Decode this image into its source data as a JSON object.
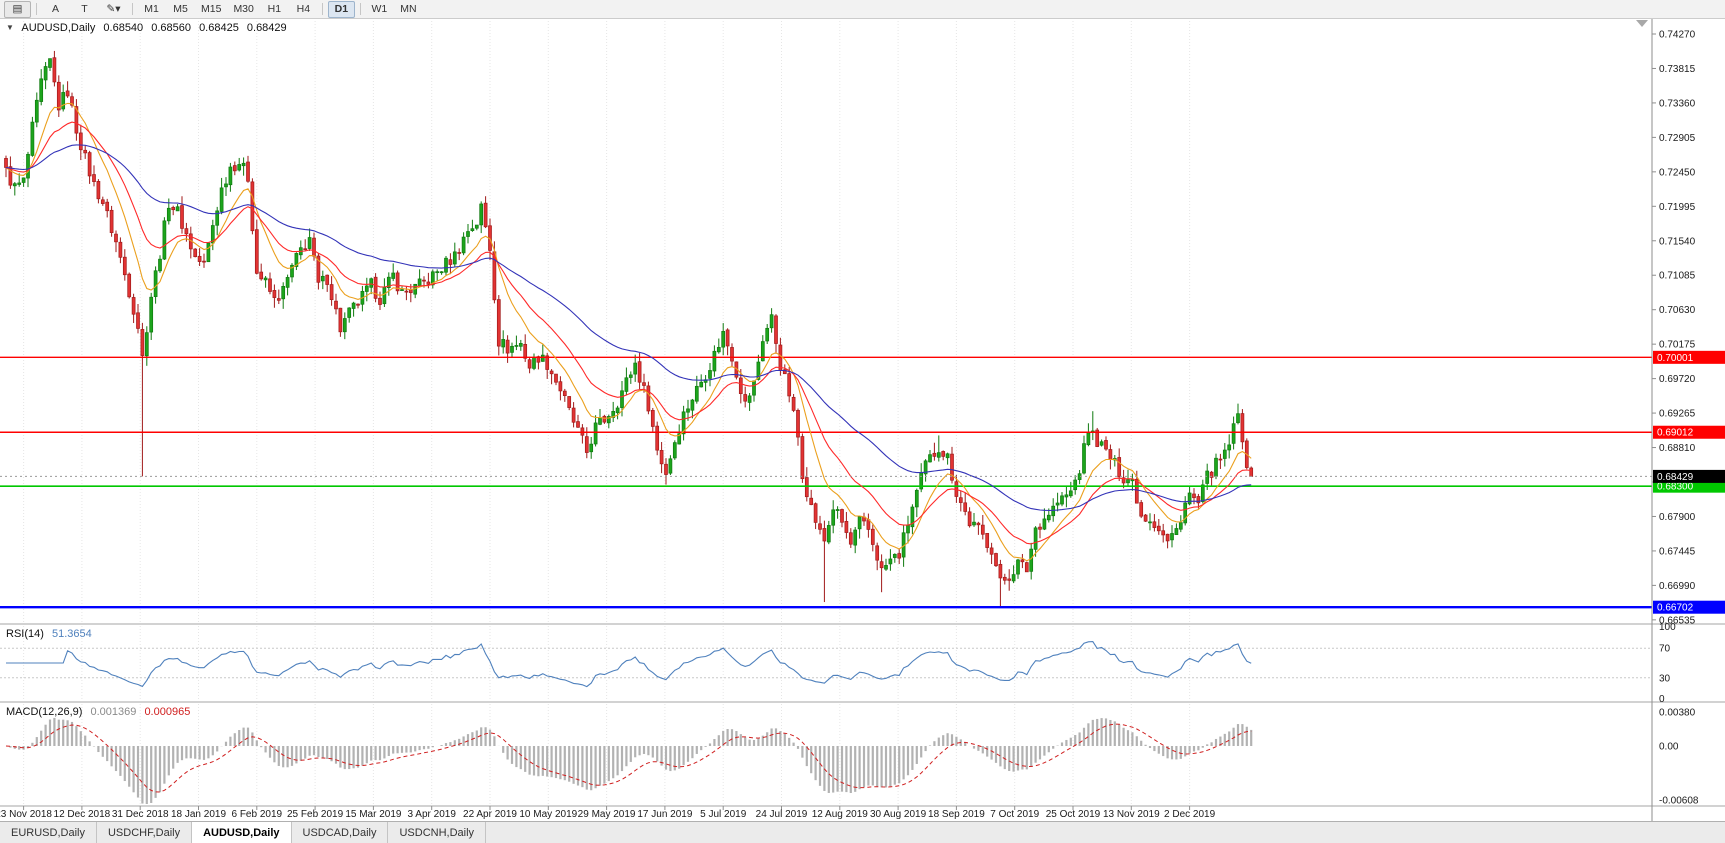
{
  "toolbar": {
    "chart_icon": "▤",
    "pointer_label": "A",
    "text_label": "T",
    "drawing_glyph": "✎",
    "caret": "▾",
    "timeframes": [
      "M1",
      "M5",
      "M15",
      "M30",
      "H1",
      "H4",
      "D1",
      "W1",
      "MN"
    ],
    "active_timeframe": "D1"
  },
  "chart": {
    "title": {
      "symbol": "AUDUSD,Daily",
      "open": "0.68540",
      "high": "0.68560",
      "low": "0.68425",
      "close": "0.68429"
    },
    "price_axis": {
      "labels": [
        "0.74270",
        "0.73815",
        "0.73360",
        "0.72905",
        "0.72450",
        "0.71995",
        "0.71540",
        "0.71085",
        "0.70630",
        "0.70175",
        "0.69720",
        "0.69265",
        "0.68810",
        "0.68355",
        "0.67900",
        "0.67445",
        "0.66990",
        "0.66535"
      ]
    },
    "date_labels": [
      "23 Nov 2018",
      "12 Dec 2018",
      "31 Dec 2018",
      "18 Jan 2019",
      "6 Feb 2019",
      "25 Feb 2019",
      "15 Mar 2019",
      "3 Apr 2019",
      "22 Apr 2019",
      "10 May 2019",
      "29 May 2019",
      "17 Jun 2019",
      "5 Jul 2019",
      "24 Jul 2019",
      "12 Aug 2019",
      "30 Aug 2019",
      "18 Sep 2019",
      "7 Oct 2019",
      "25 Oct 2019",
      "13 Nov 2019",
      "2 Dec 2019"
    ]
  },
  "indicators": {
    "rsi": {
      "title": "RSI(14)",
      "value": "51.3654",
      "period": 14,
      "color": "#4f81bd",
      "levels": [
        70,
        30
      ],
      "axis_labels": [
        "100",
        "70",
        "30",
        "0"
      ]
    },
    "macd": {
      "title": "MACD(12,26,9)",
      "main_value": "0.001369",
      "signal_value": "0.000965",
      "fast": 12,
      "slow": 26,
      "signal": 9,
      "histogram_color": "#b2b2b2",
      "signal_color": "#d02020",
      "axis_labels": [
        {
          "text": "0.00380",
          "value": 0.0038
        },
        {
          "text": "0.00",
          "value": 0
        },
        {
          "text": "-0.00608",
          "value": -0.00608
        }
      ]
    }
  },
  "tabs": {
    "items": [
      "EURUSD,Daily",
      "USDCHF,Daily",
      "AUDUSD,Daily",
      "USDCAD,Daily",
      "USDCNH,Daily"
    ],
    "active": "AUDUSD,Daily"
  },
  "chart_data": {
    "type": "candlestick",
    "symbol": "AUDUSD",
    "timeframe": "Daily",
    "bar_count": 284,
    "ohlc_last": {
      "open": 0.6854,
      "high": 0.6856,
      "low": 0.68425,
      "close": 0.68429
    },
    "y_axis": {
      "min": 0.66535,
      "max": 0.7427,
      "tick_step": 0.00455
    },
    "colors": {
      "up": "#1ca51c",
      "up_border": "#0f7a0f",
      "down": "#e23333",
      "down_border": "#a01a1a",
      "current_price_line": "#9a9a9a"
    },
    "price_waypoints": [
      [
        0,
        0.7245
      ],
      [
        2,
        0.7224
      ],
      [
        4,
        0.7232
      ],
      [
        6,
        0.7302
      ],
      [
        8,
        0.7362
      ],
      [
        10,
        0.739
      ],
      [
        12,
        0.7332
      ],
      [
        14,
        0.7352
      ],
      [
        16,
        0.7302
      ],
      [
        18,
        0.7262
      ],
      [
        20,
        0.7228
      ],
      [
        22,
        0.7205
      ],
      [
        25,
        0.7152
      ],
      [
        28,
        0.7088
      ],
      [
        30,
        0.7042
      ],
      [
        31,
        0.7
      ],
      [
        33,
        0.7082
      ],
      [
        35,
        0.7138
      ],
      [
        37,
        0.7205
      ],
      [
        39,
        0.7192
      ],
      [
        41,
        0.7162
      ],
      [
        43,
        0.7132
      ],
      [
        45,
        0.7122
      ],
      [
        47,
        0.7175
      ],
      [
        49,
        0.7222
      ],
      [
        51,
        0.7252
      ],
      [
        53,
        0.7258
      ],
      [
        55,
        0.7238
      ],
      [
        57,
        0.7112
      ],
      [
        59,
        0.7098
      ],
      [
        61,
        0.7075
      ],
      [
        63,
        0.7088
      ],
      [
        65,
        0.7118
      ],
      [
        67,
        0.7142
      ],
      [
        69,
        0.7158
      ],
      [
        71,
        0.7095
      ],
      [
        73,
        0.7105
      ],
      [
        76,
        0.7038
      ],
      [
        78,
        0.7058
      ],
      [
        80,
        0.7072
      ],
      [
        83,
        0.7095
      ],
      [
        85,
        0.7078
      ],
      [
        88,
        0.7108
      ],
      [
        90,
        0.7085
      ],
      [
        93,
        0.7092
      ],
      [
        96,
        0.7102
      ],
      [
        99,
        0.7118
      ],
      [
        102,
        0.7135
      ],
      [
        105,
        0.7168
      ],
      [
        107,
        0.7178
      ],
      [
        108,
        0.7198
      ],
      [
        110,
        0.7145
      ],
      [
        112,
        0.7022
      ],
      [
        114,
        0.7012
      ],
      [
        117,
        0.7018
      ],
      [
        119,
        0.6988
      ],
      [
        121,
        0.7002
      ],
      [
        123,
        0.6992
      ],
      [
        126,
        0.6958
      ],
      [
        128,
        0.6928
      ],
      [
        130,
        0.6902
      ],
      [
        132,
        0.6875
      ],
      [
        134,
        0.6908
      ],
      [
        136,
        0.6918
      ],
      [
        139,
        0.6942
      ],
      [
        141,
        0.6968
      ],
      [
        143,
        0.6992
      ],
      [
        146,
        0.6938
      ],
      [
        148,
        0.6878
      ],
      [
        150,
        0.6848
      ],
      [
        152,
        0.689
      ],
      [
        154,
        0.6925
      ],
      [
        157,
        0.6958
      ],
      [
        160,
        0.699
      ],
      [
        163,
        0.7032
      ],
      [
        165,
        0.7002
      ],
      [
        168,
        0.6938
      ],
      [
        170,
        0.6965
      ],
      [
        172,
        0.7025
      ],
      [
        174,
        0.7052
      ],
      [
        176,
        0.699
      ],
      [
        178,
        0.6952
      ],
      [
        180,
        0.6895
      ],
      [
        181,
        0.6848
      ],
      [
        183,
        0.6802
      ],
      [
        185,
        0.6768
      ],
      [
        186,
        0.6758
      ],
      [
        188,
        0.6802
      ],
      [
        190,
        0.6782
      ],
      [
        192,
        0.6752
      ],
      [
        194,
        0.6782
      ],
      [
        196,
        0.6772
      ],
      [
        198,
        0.6738
      ],
      [
        199,
        0.6718
      ],
      [
        201,
        0.6732
      ],
      [
        203,
        0.674
      ],
      [
        206,
        0.6802
      ],
      [
        209,
        0.6858
      ],
      [
        212,
        0.6882
      ],
      [
        214,
        0.6868
      ],
      [
        216,
        0.6822
      ],
      [
        219,
        0.6782
      ],
      [
        221,
        0.6772
      ],
      [
        224,
        0.6748
      ],
      [
        226,
        0.6702
      ],
      [
        228,
        0.6712
      ],
      [
        230,
        0.6728
      ],
      [
        232,
        0.672
      ],
      [
        234,
        0.6775
      ],
      [
        236,
        0.6788
      ],
      [
        239,
        0.6808
      ],
      [
        242,
        0.6822
      ],
      [
        244,
        0.6852
      ],
      [
        246,
        0.6905
      ],
      [
        248,
        0.689
      ],
      [
        250,
        0.6875
      ],
      [
        252,
        0.6858
      ],
      [
        254,
        0.6842
      ],
      [
        256,
        0.6838
      ],
      [
        258,
        0.6792
      ],
      [
        260,
        0.6788
      ],
      [
        262,
        0.6775
      ],
      [
        264,
        0.6756
      ],
      [
        266,
        0.6772
      ],
      [
        268,
        0.6808
      ],
      [
        269,
        0.6818
      ],
      [
        271,
        0.6806
      ],
      [
        273,
        0.6842
      ],
      [
        275,
        0.6858
      ],
      [
        277,
        0.687
      ],
      [
        279,
        0.6905
      ],
      [
        280,
        0.6922
      ],
      [
        281,
        0.6896
      ],
      [
        282,
        0.6862
      ],
      [
        283,
        0.68429
      ]
    ],
    "wick_events": [
      {
        "i": 10,
        "high": 0.7394
      },
      {
        "i": 31,
        "low": 0.6843
      },
      {
        "i": 108,
        "high": 0.7206
      },
      {
        "i": 150,
        "low": 0.6832
      },
      {
        "i": 174,
        "high": 0.7065
      },
      {
        "i": 186,
        "low": 0.6677
      },
      {
        "i": 199,
        "low": 0.669
      },
      {
        "i": 212,
        "high": 0.6897
      },
      {
        "i": 226,
        "low": 0.667
      },
      {
        "i": 247,
        "high": 0.6929
      },
      {
        "i": 280,
        "high": 0.6939
      }
    ],
    "moving_averages": [
      {
        "name": "ma-fast-line",
        "period": 10,
        "color": "#eba01e"
      },
      {
        "name": "ma-mid-line",
        "period": 21,
        "color": "#ff2a2a"
      },
      {
        "name": "ma-slow-line",
        "period": 55,
        "color": "#3333b8"
      }
    ],
    "overlays": {
      "horizontal_lines": [
        {
          "value": 0.70001,
          "label": "0.70001",
          "color": "#ff0000",
          "width": 1.4
        },
        {
          "value": 0.69012,
          "label": "0.69012",
          "color": "#ff0000",
          "width": 1.4
        },
        {
          "value": 0.683,
          "label": "0.68300",
          "color": "#00c800",
          "width": 1.6
        },
        {
          "value": 0.66702,
          "label": "0.66702",
          "color": "#0000ff",
          "width": 2.4
        }
      ],
      "current_price": {
        "value": 0.68429,
        "label": "0.68429",
        "badge_color": "#000000"
      }
    }
  }
}
